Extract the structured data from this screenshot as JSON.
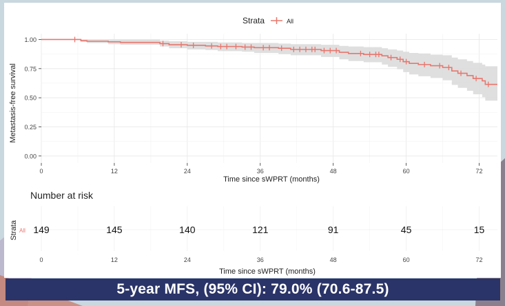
{
  "legend": {
    "title": "Strata",
    "label": "All",
    "color": "#e8766d"
  },
  "chart_data": {
    "type": "line",
    "subtype": "kaplan-meier survival curve with 95% CI band and censor marks",
    "xlabel": "Time since sWPRT (months)",
    "ylabel": "Metastasis-free survival",
    "xlim": [
      0,
      75
    ],
    "ylim": [
      0,
      1
    ],
    "xticks": [
      0,
      12,
      24,
      36,
      48,
      60,
      72
    ],
    "yticks": [
      "0.00",
      "0.25",
      "0.50",
      "0.75",
      "1.00"
    ],
    "grid": true,
    "legend_position": "top",
    "series": [
      {
        "name": "All",
        "color": "#e8766d",
        "step_x": [
          0,
          6.5,
          7.5,
          11,
          13,
          19.5,
          21,
          24,
          27,
          29,
          33,
          35,
          39,
          41,
          46,
          49,
          50.5,
          53,
          56,
          57,
          58.5,
          59.5,
          60.5,
          62,
          64,
          66,
          67.5,
          68.5,
          70,
          71,
          72.5,
          73,
          75
        ],
        "step_y": [
          1.0,
          0.99,
          0.985,
          0.98,
          0.975,
          0.965,
          0.955,
          0.95,
          0.945,
          0.94,
          0.935,
          0.93,
          0.925,
          0.915,
          0.905,
          0.89,
          0.88,
          0.872,
          0.86,
          0.845,
          0.83,
          0.81,
          0.795,
          0.785,
          0.775,
          0.76,
          0.73,
          0.71,
          0.69,
          0.665,
          0.645,
          0.615,
          0.615
        ],
        "ci_lower": [
          1.0,
          0.98,
          0.97,
          0.96,
          0.955,
          0.94,
          0.925,
          0.915,
          0.91,
          0.9,
          0.895,
          0.885,
          0.875,
          0.865,
          0.85,
          0.83,
          0.815,
          0.805,
          0.785,
          0.765,
          0.745,
          0.72,
          0.7,
          0.685,
          0.67,
          0.65,
          0.61,
          0.585,
          0.56,
          0.53,
          0.505,
          0.475,
          0.475
        ],
        "ci_upper": [
          1.0,
          1.0,
          1.0,
          1.0,
          1.0,
          0.99,
          0.985,
          0.98,
          0.98,
          0.975,
          0.97,
          0.97,
          0.965,
          0.96,
          0.955,
          0.945,
          0.94,
          0.935,
          0.925,
          0.915,
          0.905,
          0.895,
          0.885,
          0.88,
          0.87,
          0.865,
          0.845,
          0.83,
          0.815,
          0.8,
          0.785,
          0.77,
          0.77
        ],
        "censor_x": [
          5.5,
          20,
          23,
          25,
          28,
          29.5,
          30.5,
          32,
          33.5,
          34.5,
          36.5,
          37.5,
          39.5,
          41.5,
          42.5,
          43.5,
          44.5,
          45,
          46.5,
          47.5,
          48.5,
          52.5,
          54,
          55,
          55.5,
          57.5,
          59,
          60,
          63,
          65.5,
          67,
          69,
          71.5,
          73.5
        ]
      }
    ],
    "risk_table": {
      "title": "Number at risk",
      "strata_label": "Strata",
      "row_label": "All",
      "times": [
        0,
        12,
        24,
        36,
        48,
        60,
        72
      ],
      "counts": [
        149,
        145,
        140,
        121,
        91,
        45,
        15
      ],
      "xlabel": "Time since sWPRT (months)"
    }
  },
  "summary": "5-year MFS, (95% CI): 79.0% (70.6-87.5)"
}
